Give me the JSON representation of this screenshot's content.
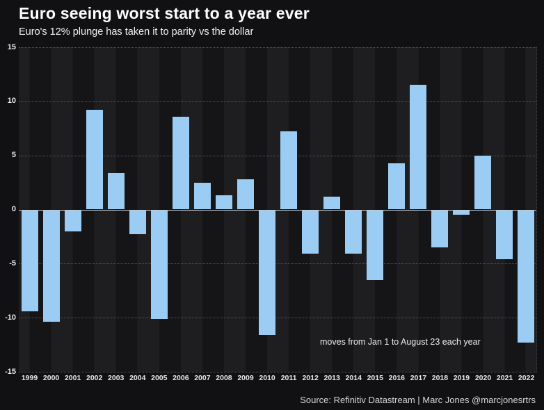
{
  "header": {
    "title": "Euro seeing worst start to a year ever",
    "subtitle": "Euro's 12% plunge has taken it to parity vs the dollar"
  },
  "chart_data": {
    "type": "bar",
    "title": "Euro seeing worst start to a year ever",
    "subtitle": "Euro's 12% plunge has taken it to parity vs the dollar",
    "categories": [
      "1999",
      "2000",
      "2001",
      "2002",
      "2003",
      "2004",
      "2005",
      "2006",
      "2007",
      "2008",
      "2009",
      "2010",
      "2011",
      "2012",
      "2013",
      "2014",
      "2015",
      "2016",
      "2017",
      "2018",
      "2019",
      "2020",
      "2021",
      "2022"
    ],
    "values": [
      -9.4,
      -10.4,
      -2.0,
      9.2,
      3.4,
      -2.3,
      -10.1,
      8.6,
      2.5,
      1.3,
      2.8,
      -11.6,
      7.2,
      -4.1,
      1.2,
      -4.1,
      -6.5,
      4.3,
      11.5,
      -3.5,
      -0.5,
      5.0,
      -4.6,
      -12.3
    ],
    "xlabel": "",
    "ylabel": "",
    "ylim": [
      -15,
      15
    ],
    "yticks": [
      15,
      10,
      5,
      0,
      -5,
      -10,
      -15
    ],
    "grid": "horizontal-dotted",
    "legend": "none",
    "annotation": "moves from Jan 1 to August 23 each year",
    "bar_color": "#9bccf3",
    "background_color": "#111113",
    "stripe_light": "#1e1e21",
    "stripe_dark": "#151517"
  },
  "footer": {
    "source": "Source: Refinitiv Datastream | Marc Jones @marcjonesrtrs"
  }
}
